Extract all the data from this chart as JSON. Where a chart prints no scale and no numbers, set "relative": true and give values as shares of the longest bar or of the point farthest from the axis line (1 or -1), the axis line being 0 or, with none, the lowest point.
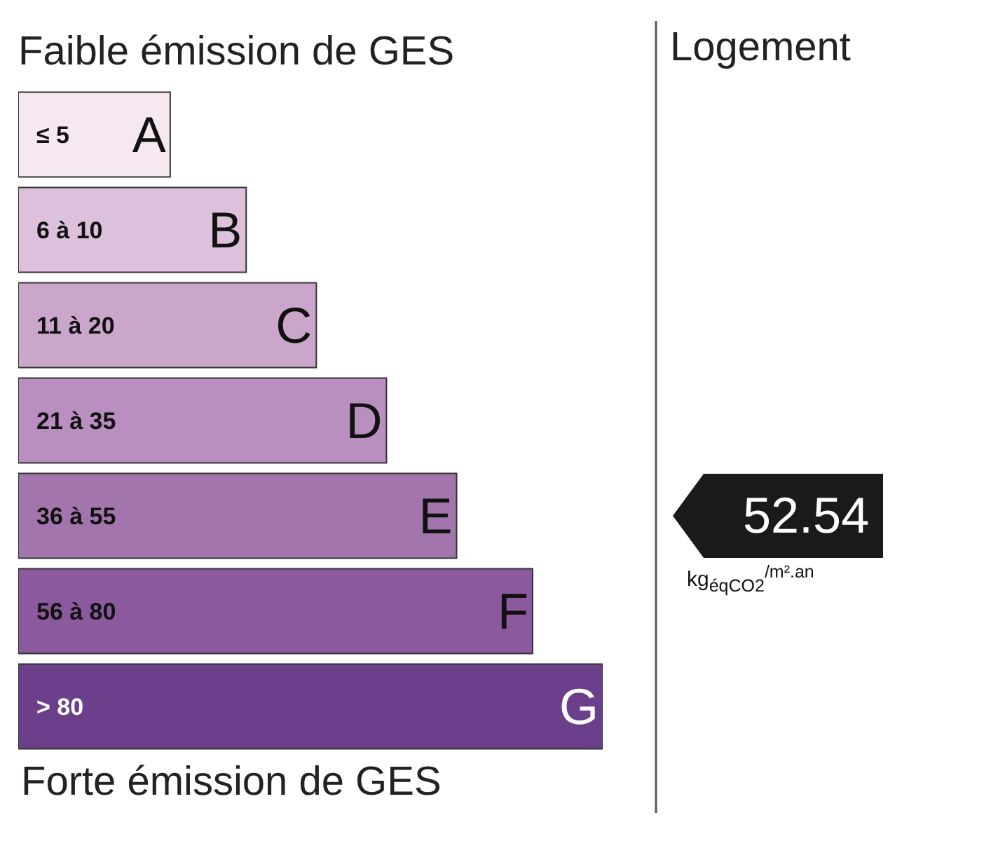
{
  "chart_data": {
    "type": "bar",
    "orientation": "horizontal",
    "relative": true,
    "title": "Faible émission de GES",
    "categories": [
      "A",
      "B",
      "C",
      "D",
      "E",
      "F",
      "G"
    ],
    "values": [
      0.26,
      0.39,
      0.51,
      0.63,
      0.75,
      0.88,
      1
    ],
    "colors": [
      "#f5e8f1",
      "#dcc0dc",
      "#caa6cb",
      "#b88fbf",
      "#a276ac",
      "#8b599e",
      "#6c3f8b"
    ],
    "annotations": [
      "≤ 5",
      "6 à 10",
      "11 à 20",
      "21 à 35",
      "36 à 55",
      "56 à 80",
      "> 80",
      "Forte émission de GES",
      "Logement",
      "kg$_{éqCO2}$$^{/m².an}$",
      "52.54"
    ]
  }
}
